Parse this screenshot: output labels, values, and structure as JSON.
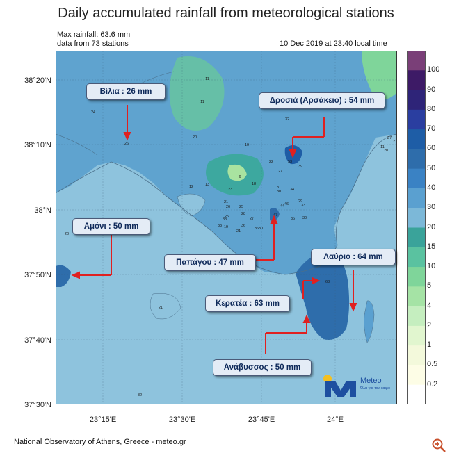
{
  "title": "Daily accumulated rainfall from meteorological stations",
  "max_rainfall": "Max rainfall: 63.6 mm",
  "stations_info": "data from 73 stations",
  "timestamp": "10 Dec 2019 at 23:40 local time",
  "footer": "National Observatory of Athens, Greece - meteo.gr",
  "lat_labels": [
    "38°20'N",
    "38°10'N",
    "38°N",
    "37°50'N",
    "37°40'N",
    "37°30'N"
  ],
  "lon_labels": [
    "23°15'E",
    "23°30'E",
    "23°45'E",
    "24°E"
  ],
  "colorbar": {
    "labels": [
      "100",
      "90",
      "80",
      "70",
      "60",
      "50",
      "40",
      "30",
      "20",
      "15",
      "10",
      "5",
      "4",
      "2",
      "1",
      "0.5",
      "0.2"
    ],
    "colors": [
      "#7a3f78",
      "#3d1a66",
      "#2e2478",
      "#2a3ea0",
      "#1e5da6",
      "#2e6dab",
      "#3a82c4",
      "#5aa0d0",
      "#7cb8d8",
      "#3aa39a",
      "#5ac2a0",
      "#7fd59a",
      "#a5e3a5",
      "#c5eebf",
      "#e1f6cf",
      "#f3f9db",
      "#fdfde6",
      "#ffffff"
    ]
  },
  "callouts": [
    {
      "id": "vilia",
      "text": "Βίλια : 26 mm"
    },
    {
      "id": "drosia",
      "text": "Δροσιά (Αρσάκειο) : 54 mm"
    },
    {
      "id": "amoni",
      "text": "Αμόνι : 50 mm"
    },
    {
      "id": "papagou",
      "text": "Παπάγου : 47 mm"
    },
    {
      "id": "lavrio",
      "text": "Λαύριο : 64 mm"
    },
    {
      "id": "keratea",
      "text": "Κερατέα : 63 mm"
    },
    {
      "id": "anavyssos",
      "text": "Ανάβυσσος : 50 mm"
    }
  ],
  "station_values": [
    "11",
    "11",
    "24",
    "26",
    "20",
    "32",
    "19",
    "53",
    "39",
    "22",
    "27",
    "6",
    "18",
    "13",
    "12",
    "23",
    "21",
    "25",
    "31",
    "30",
    "34",
    "26",
    "28",
    "44",
    "29",
    "27",
    "33",
    "25",
    "33",
    "30",
    "36",
    "36",
    "47",
    "19",
    "21",
    "30",
    "36",
    "33",
    "21",
    "63",
    "32",
    "20",
    "11",
    "20",
    "21",
    "0",
    "27",
    "46"
  ],
  "logo": {
    "name": "Meteo",
    "tagline": "Όλα για τον καιρό"
  }
}
